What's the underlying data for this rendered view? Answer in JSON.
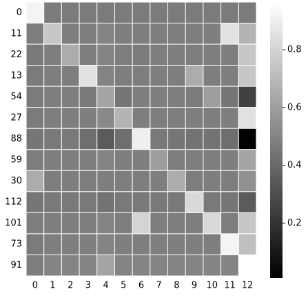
{
  "chart_data": {
    "type": "heatmap",
    "colormap": "gray",
    "x": [
      "0",
      "1",
      "2",
      "3",
      "4",
      "5",
      "6",
      "7",
      "8",
      "9",
      "10",
      "11",
      "12"
    ],
    "y": [
      "0",
      "11",
      "22",
      "13",
      "54",
      "27",
      "88",
      "59",
      "30",
      "112",
      "101",
      "73",
      "91"
    ],
    "z": [
      [
        0.92,
        0.47,
        0.47,
        0.47,
        0.47,
        0.47,
        0.47,
        0.47,
        0.47,
        0.47,
        0.47,
        0.47,
        0.47
      ],
      [
        0.48,
        0.75,
        0.48,
        0.48,
        0.5,
        0.48,
        0.48,
        0.48,
        0.48,
        0.48,
        0.48,
        0.85,
        0.68
      ],
      [
        0.46,
        0.48,
        0.65,
        0.48,
        0.5,
        0.48,
        0.47,
        0.48,
        0.48,
        0.48,
        0.48,
        0.48,
        0.75
      ],
      [
        0.47,
        0.48,
        0.48,
        0.85,
        0.5,
        0.48,
        0.48,
        0.48,
        0.48,
        0.65,
        0.48,
        0.48,
        0.75
      ],
      [
        0.47,
        0.48,
        0.48,
        0.46,
        0.62,
        0.45,
        0.48,
        0.48,
        0.48,
        0.47,
        0.6,
        0.45,
        0.25
      ],
      [
        0.47,
        0.48,
        0.48,
        0.48,
        0.52,
        0.68,
        0.48,
        0.48,
        0.48,
        0.48,
        0.48,
        0.48,
        0.85
      ],
      [
        0.45,
        0.46,
        0.46,
        0.42,
        0.35,
        0.42,
        0.9,
        0.46,
        0.45,
        0.44,
        0.44,
        0.42,
        0.02
      ],
      [
        0.48,
        0.48,
        0.48,
        0.48,
        0.5,
        0.48,
        0.48,
        0.6,
        0.48,
        0.48,
        0.48,
        0.48,
        0.62
      ],
      [
        0.65,
        0.48,
        0.48,
        0.48,
        0.48,
        0.48,
        0.48,
        0.48,
        0.65,
        0.48,
        0.48,
        0.48,
        0.55
      ],
      [
        0.45,
        0.46,
        0.46,
        0.46,
        0.44,
        0.46,
        0.46,
        0.46,
        0.46,
        0.82,
        0.46,
        0.45,
        0.35
      ],
      [
        0.48,
        0.48,
        0.48,
        0.48,
        0.5,
        0.48,
        0.8,
        0.48,
        0.48,
        0.48,
        0.82,
        0.48,
        0.75
      ],
      [
        0.47,
        0.48,
        0.48,
        0.48,
        0.5,
        0.48,
        0.48,
        0.48,
        0.48,
        0.48,
        0.48,
        0.92,
        0.72
      ],
      [
        0.48,
        0.5,
        0.5,
        0.5,
        0.62,
        0.5,
        0.5,
        0.5,
        0.5,
        0.5,
        0.5,
        0.5,
        null
      ]
    ],
    "zlim": [
      0.01,
      0.96
    ],
    "colorbar_ticks": [
      0.2,
      0.4,
      0.6,
      0.8
    ]
  }
}
